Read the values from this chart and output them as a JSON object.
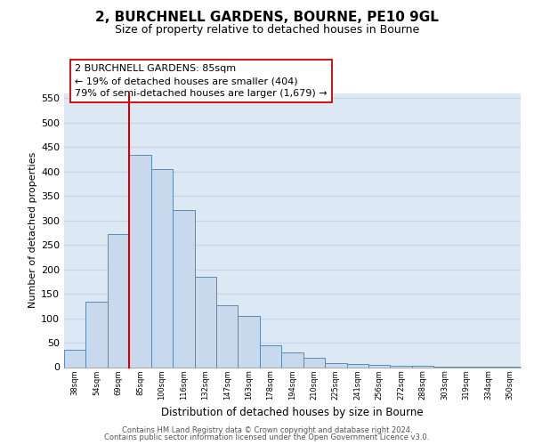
{
  "title": "2, BURCHNELL GARDENS, BOURNE, PE10 9GL",
  "subtitle": "Size of property relative to detached houses in Bourne",
  "xlabel": "Distribution of detached houses by size in Bourne",
  "ylabel": "Number of detached properties",
  "bin_labels": [
    "38sqm",
    "54sqm",
    "69sqm",
    "85sqm",
    "100sqm",
    "116sqm",
    "132sqm",
    "147sqm",
    "163sqm",
    "178sqm",
    "194sqm",
    "210sqm",
    "225sqm",
    "241sqm",
    "256sqm",
    "272sqm",
    "288sqm",
    "303sqm",
    "319sqm",
    "334sqm",
    "350sqm"
  ],
  "bar_heights": [
    35,
    133,
    272,
    435,
    405,
    322,
    184,
    127,
    104,
    45,
    30,
    20,
    8,
    6,
    4,
    3,
    2,
    1,
    1,
    1,
    1
  ],
  "bar_color": "#c8d9ee",
  "bar_edge_color": "#5b8ab0",
  "vline_x_index": 3,
  "vline_color": "#cc0000",
  "annotation_line1": "2 BURCHNELL GARDENS: 85sqm",
  "annotation_line2": "← 19% of detached houses are smaller (404)",
  "annotation_line3": "79% of semi-detached houses are larger (1,679) →",
  "annotation_box_color": "#ffffff",
  "annotation_box_edge_color": "#cc0000",
  "ylim": [
    0,
    560
  ],
  "yticks": [
    0,
    50,
    100,
    150,
    200,
    250,
    300,
    350,
    400,
    450,
    500,
    550
  ],
  "footer_line1": "Contains HM Land Registry data © Crown copyright and database right 2024.",
  "footer_line2": "Contains public sector information licensed under the Open Government Licence v3.0.",
  "grid_color": "#c8d4e8",
  "background_color": "#dde8f5",
  "title_fontsize": 11,
  "subtitle_fontsize": 9
}
